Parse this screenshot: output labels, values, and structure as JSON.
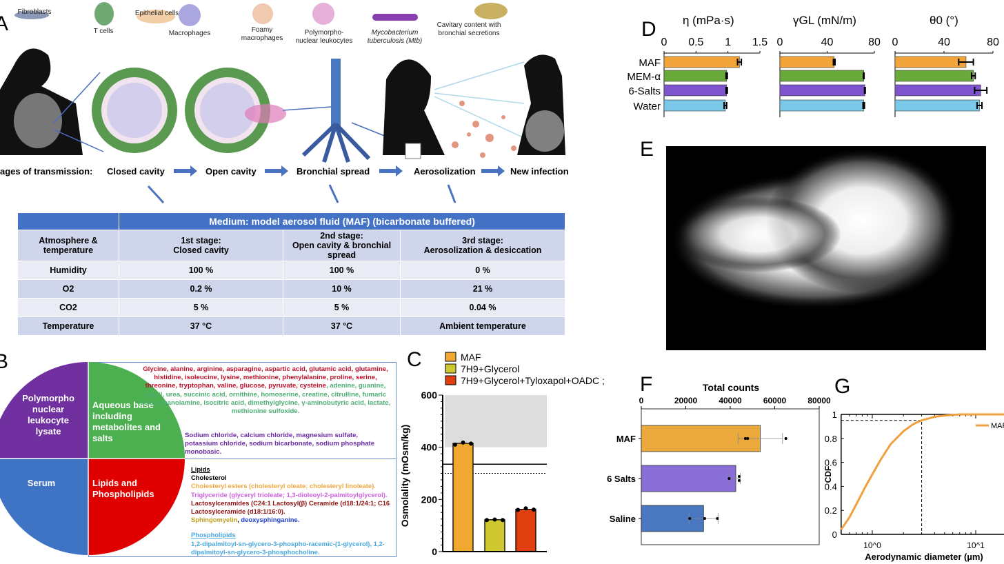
{
  "panel_labels": {
    "a": "A",
    "b": "B",
    "c": "C",
    "d": "D",
    "e": "E",
    "f": "F",
    "g": "G"
  },
  "panel_a": {
    "cells": [
      "Fibroblasts",
      "T cells",
      "Epithelial cells",
      "Macrophages",
      "Foamy macrophages",
      "Polymorpho-nuclear leukocytes",
      "Mycobacterium tuberculosis (Mtb)",
      "Cavitary content with bronchial secretions"
    ],
    "cell_lines": {
      "foamy": [
        "Foamy",
        "macrophages"
      ],
      "pmn": [
        "Polymorpho-",
        "nuclear leukocytes"
      ],
      "mtb": [
        "Mycobacterium",
        "tuberculosis (Mtb)"
      ],
      "cavitary": [
        "Cavitary content with",
        "bronchial secretions"
      ]
    },
    "stages_label": "ages of transmission:",
    "stages": [
      "Closed cavity",
      "Open cavity",
      "Bronchial spread",
      "Aerosolization",
      "New infection"
    ],
    "table": {
      "header": "Medium: model aerosol fluid (MAF) (bicarbonate buffered)",
      "row_header": {
        "c0": "Atmosphere & temperature",
        "c1a": "1st stage:",
        "c1b": "Closed cavity",
        "c2a": "2nd stage:",
        "c2b": "Open cavity & bronchial spread",
        "c3a": "3rd stage:",
        "c3b": "Aerosolization & desiccation"
      },
      "rows": [
        {
          "name": "Humidity",
          "s1": "100 %",
          "s2": "100 %",
          "s3": "0 %"
        },
        {
          "name": "O2",
          "s1": "0.2 %",
          "s2": "10 %",
          "s3": "21 %"
        },
        {
          "name": "CO2",
          "s1": "5 %",
          "s2": "5 %",
          "s3": "0.04 %"
        },
        {
          "name": "Temperature",
          "s1": "37 °C",
          "s2": "37 °C",
          "s3": "Ambient temperature"
        }
      ]
    }
  },
  "panel_b": {
    "pie": [
      "Polymorpho nuclear leukocyte lysate",
      "Aqueous base including metabolites and salts",
      "Serum",
      "Lipids and Phospholipids"
    ],
    "aqueous_red": "Glycine, alanine, arginine, asparagine, aspartic acid, glutamic acid, glutamine, histidine, isoleucine, lysine, methionine, phenylalanine, proline, serine, threonine, tryptophan, valine, glucose, pyruvate, cysteine",
    "aqueous_green": ", adenine, guanine, uracil, urea, succinic acid, ornithine, homoserine, creatine, citrulline, fumaric acid, ethanolamine, isocitric acid, dimethylglycine, γ-aminobutyric acid, lactate, methionine sulfoxide.",
    "salts": "Sodium chloride, calcium chloride, magnesium sulfate, potassium chloride, sodium bicarbonate, sodium phosphate monobasic.",
    "lipids_title": "Lipids",
    "cholesterol": "Cholesterol",
    "chol_esters": "Cholesteryl esters (cholesteryl oleate; cholesteryl linoleate).",
    "triglyceride": "Triglyceride (glyceryl trioleate; 1,3-dioleoyl-2-palmitoylglycerol).",
    "lactosyl": "Lactosylceramides (C24:1 Lactosyl(β) Ceramide (d18:1/24:1; C16 Lactosylceramide (d18:1/16:0).",
    "sphingo": "Sphingomyelin",
    "deoxy": "deoxysphinganine.",
    "phospho_title": "Phospholipids",
    "phospho": "1,2-dipalmitoyl-sn-glycero-3-phospho-racemic-(1-glycerol), 1,2-dipalmitoyl-sn-glycero-3-phosphocholine."
  },
  "chart_data": [
    {
      "id": "C",
      "type": "bar",
      "ylabel": "Osmolality (mOsm/kg)",
      "ylim": [
        0,
        600
      ],
      "yticks": [
        "0",
        "200",
        "400",
        "600"
      ],
      "categories": [
        "MAF",
        "7H9+Glycerol",
        "7H9+Glycerol+Tyloxapol+OADC"
      ],
      "legend": [
        "MAF",
        "7H9+Glycerol",
        "7H9+Glycerol+Tyloxapol+OADC ;"
      ],
      "values": [
        415,
        122,
        162
      ],
      "points": [
        [
          410,
          418,
          414
        ],
        [
          121,
          123,
          121
        ],
        [
          160,
          166,
          161
        ]
      ],
      "colors": [
        "#f0a830",
        "#cfc830",
        "#e04010"
      ],
      "shaded_range": [
        400,
        600
      ],
      "solid_line": 335,
      "dotted_line": 300
    },
    {
      "id": "D",
      "type": "bar",
      "orientation": "horizontal",
      "categories": [
        "MAF",
        "MEM-α",
        "6-Salts",
        "Water"
      ],
      "colors": [
        "#f0a43a",
        "#6aaa3a",
        "#7e55cc",
        "#7cc8e8"
      ],
      "subplots": [
        {
          "xlabel": "η (mPa·s)",
          "xlim": [
            0,
            1.5
          ],
          "xticks": [
            "0",
            "0.5",
            "1",
            "1.5"
          ],
          "values": [
            1.18,
            0.98,
            0.98,
            0.96
          ],
          "errors": [
            0.03,
            0.01,
            0.01,
            0.02
          ]
        },
        {
          "xlabel": "γGL (mN/m)",
          "xlim": [
            0,
            80
          ],
          "xticks": [
            "0",
            "40",
            "80"
          ],
          "values": [
            46,
            71,
            72,
            71
          ],
          "errors": [
            0.7,
            0.3,
            0.3,
            0.6
          ]
        },
        {
          "xlabel": "θ0 (°)",
          "xlim": [
            0,
            80
          ],
          "xticks": [
            "0",
            "40",
            "80"
          ],
          "values": [
            58,
            64,
            70,
            69
          ],
          "errors": [
            6,
            1.5,
            5,
            2
          ]
        }
      ]
    },
    {
      "id": "F",
      "type": "bar",
      "orientation": "horizontal",
      "xlabel": "Total counts",
      "xlim": [
        0,
        80000
      ],
      "xticks": [
        "0",
        "20000",
        "40000",
        "60000",
        "80000"
      ],
      "categories": [
        "MAF",
        "6 Salts",
        "Saline"
      ],
      "values": [
        53500,
        42500,
        28000
      ],
      "errors": [
        [
          43500,
          63500
        ],
        [
          39500,
          44500
        ],
        [
          21500,
          34500
        ]
      ],
      "points": [
        [
          46800,
          47800,
          65000
        ],
        [
          39500,
          44000,
          44000
        ],
        [
          21800,
          28500,
          34200
        ]
      ],
      "colors": [
        "#eaa93a",
        "#8a6ed8",
        "#4a78c0"
      ]
    },
    {
      "id": "G",
      "type": "line",
      "xlabel": "Aerodynamic diameter (µm)",
      "ylabel": "CDF",
      "xscale": "log",
      "xlim": [
        0.5,
        30
      ],
      "ylim": [
        0,
        1
      ],
      "yticks": [
        "0",
        "0.2",
        "0.4",
        "0.6",
        "0.8",
        "1"
      ],
      "xtick_labels": [
        "10^0",
        "10^1"
      ],
      "legend": [
        "MAF"
      ],
      "series": [
        {
          "name": "MAF",
          "color": "#f0a040",
          "x": [
            0.5,
            0.6,
            0.7,
            0.85,
            1,
            1.2,
            1.5,
            2,
            2.5,
            3,
            4,
            5,
            7,
            10,
            30
          ],
          "y": [
            0.04,
            0.14,
            0.25,
            0.39,
            0.5,
            0.62,
            0.75,
            0.86,
            0.92,
            0.95,
            0.98,
            0.99,
            1,
            1,
            1
          ]
        }
      ],
      "ref_x": 3,
      "ref_y": 0.95
    }
  ]
}
